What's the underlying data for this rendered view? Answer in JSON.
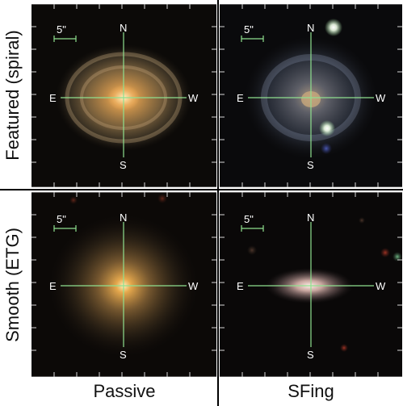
{
  "rows": [
    {
      "label": "Featured (spiral)"
    },
    {
      "label": "Smooth (ETG)"
    }
  ],
  "columns": [
    {
      "label": "Passive"
    },
    {
      "label": "SFing"
    }
  ],
  "panels": [
    {
      "id": "featured-passive",
      "scale_label": "5\"",
      "north": "N",
      "south": "S",
      "east": "E",
      "west": "W",
      "galaxy": "face-on spiral, yellow-orange, prominent arms"
    },
    {
      "id": "featured-sfing",
      "scale_label": "5\"",
      "north": "N",
      "south": "S",
      "east": "E",
      "west": "W",
      "galaxy": "faint blue spiral with two bright foreground stars"
    },
    {
      "id": "smooth-passive",
      "scale_label": "5\"",
      "north": "N",
      "south": "S",
      "east": "E",
      "west": "W",
      "galaxy": "round smooth elliptical, yellow-orange"
    },
    {
      "id": "smooth-sfing",
      "scale_label": "5\"",
      "north": "N",
      "south": "S",
      "east": "E",
      "west": "W",
      "galaxy": "small edge-on pale pinkish disk"
    }
  ],
  "colors": {
    "overlay": "#8fe08f",
    "sky": "#0a0807",
    "text": "#ffffff"
  }
}
